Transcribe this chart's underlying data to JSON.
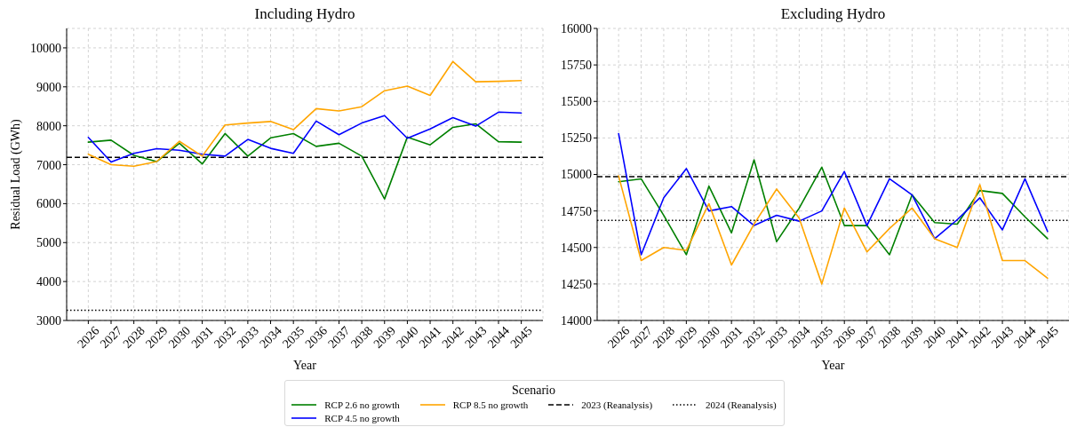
{
  "chart_data": [
    {
      "type": "line",
      "title": "Including Hydro",
      "xlabel": "Year",
      "ylabel": "Residual Load (GWh)",
      "legend_title": "Scenario",
      "legend": "bottom",
      "grid": true,
      "x": [
        2026,
        2027,
        2028,
        2029,
        2030,
        2031,
        2032,
        2033,
        2034,
        2035,
        2036,
        2037,
        2038,
        2039,
        2040,
        2041,
        2042,
        2043,
        2044,
        2045
      ],
      "series": [
        {
          "name": "RCP 2.6 no growth",
          "color": "#008000",
          "values": [
            7580,
            7630,
            7240,
            7080,
            7550,
            7020,
            7800,
            7220,
            7690,
            7800,
            7470,
            7550,
            7220,
            6120,
            7710,
            7510,
            7960,
            8050,
            7590,
            7580
          ]
        },
        {
          "name": "RCP 4.5 no growth",
          "color": "#0000ff",
          "values": [
            7700,
            7070,
            7290,
            7410,
            7370,
            7270,
            7220,
            7650,
            7420,
            7290,
            8120,
            7770,
            8070,
            8260,
            7680,
            7920,
            8210,
            7990,
            8350,
            8330
          ]
        },
        {
          "name": "RCP 8.5 no growth",
          "color": "#ffa500",
          "values": [
            7270,
            7000,
            6960,
            7080,
            7600,
            7220,
            8020,
            8070,
            8110,
            7900,
            8440,
            8380,
            8490,
            8900,
            9020,
            8780,
            9650,
            9130,
            9140,
            9160
          ]
        }
      ],
      "xlim": [
        2025.05,
        2045.95
      ],
      "xticks": [
        2026,
        2027,
        2028,
        2029,
        2030,
        2031,
        2032,
        2033,
        2034,
        2035,
        2036,
        2037,
        2038,
        2039,
        2040,
        2041,
        2042,
        2043,
        2044,
        2045
      ],
      "ylim": [
        3000,
        10500
      ],
      "yticks": [
        3000,
        4000,
        5000,
        6000,
        7000,
        8000,
        9000,
        10000
      ],
      "ref_lines": [
        {
          "axis": "y",
          "value": 7190,
          "label": "2023 (Reanalysis)",
          "color": "#000000",
          "line_style": "dashed"
        },
        {
          "axis": "y",
          "value": 3260,
          "label": "2024 (Reanalysis)",
          "color": "#000000",
          "line_style": "dotted"
        }
      ]
    },
    {
      "type": "line",
      "title": "Excluding Hydro",
      "xlabel": "Year",
      "grid": true,
      "x": [
        2026,
        2027,
        2028,
        2029,
        2030,
        2031,
        2032,
        2033,
        2034,
        2035,
        2036,
        2037,
        2038,
        2039,
        2040,
        2041,
        2042,
        2043,
        2044,
        2045
      ],
      "series": [
        {
          "color": "#008000",
          "values": [
            14950,
            14970,
            14720,
            14450,
            14920,
            14600,
            15100,
            14540,
            14770,
            15050,
            14650,
            14650,
            14450,
            14860,
            14670,
            14660,
            14890,
            14870,
            14710,
            14560
          ]
        },
        {
          "color": "#0000ff",
          "values": [
            15280,
            14450,
            14840,
            15040,
            14750,
            14780,
            14650,
            14720,
            14680,
            14750,
            15020,
            14650,
            14970,
            14860,
            14560,
            14690,
            14840,
            14620,
            14970,
            14610
          ]
        },
        {
          "color": "#ffa500",
          "values": [
            14990,
            14410,
            14500,
            14480,
            14800,
            14380,
            14660,
            14900,
            14700,
            14250,
            14770,
            14470,
            14630,
            14770,
            14560,
            14500,
            14930,
            14410,
            14410,
            14290
          ]
        }
      ],
      "xlim": [
        2025.05,
        2045.95
      ],
      "xticks": [
        2026,
        2027,
        2028,
        2029,
        2030,
        2031,
        2032,
        2033,
        2034,
        2035,
        2036,
        2037,
        2038,
        2039,
        2040,
        2041,
        2042,
        2043,
        2044,
        2045
      ],
      "ylim": [
        14000,
        16000
      ],
      "yticks": [
        14000,
        14250,
        14500,
        14750,
        15000,
        15250,
        15500,
        15750,
        16000
      ],
      "ref_lines": [
        {
          "axis": "y",
          "value": 14985,
          "color": "#000000",
          "line_style": "dashed"
        },
        {
          "axis": "y",
          "value": 14685,
          "color": "#000000",
          "line_style": "dotted"
        }
      ]
    }
  ]
}
